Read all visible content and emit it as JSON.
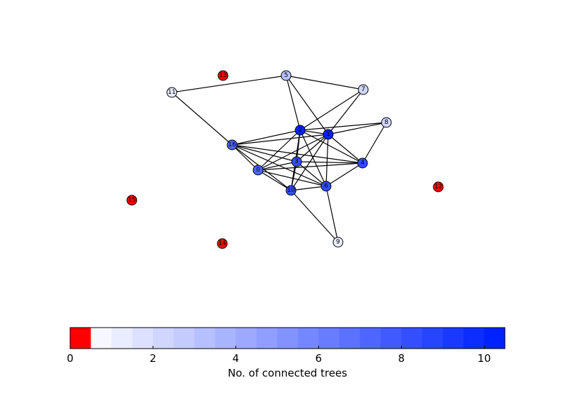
{
  "graph": {
    "nodes": [
      {
        "id": "0",
        "value": 7
      },
      {
        "id": "1",
        "value": 10
      },
      {
        "id": "2",
        "value": 10
      },
      {
        "id": "3",
        "value": 8
      },
      {
        "id": "4",
        "value": 8
      },
      {
        "id": "5",
        "value": 3
      },
      {
        "id": "6",
        "value": 8
      },
      {
        "id": "7",
        "value": 2
      },
      {
        "id": "8",
        "value": 2
      },
      {
        "id": "9",
        "value": 1
      },
      {
        "id": "10",
        "value": 8
      },
      {
        "id": "11",
        "value": 1
      },
      {
        "id": "12",
        "value": 0
      },
      {
        "id": "13",
        "value": 0
      },
      {
        "id": "14",
        "value": 0
      },
      {
        "id": "15",
        "value": 0
      },
      {
        "id": "16",
        "value": 7
      }
    ],
    "edges": [
      [
        "11",
        "5"
      ],
      [
        "11",
        "16"
      ],
      [
        "5",
        "7"
      ],
      [
        "5",
        "2"
      ],
      [
        "5",
        "1"
      ],
      [
        "7",
        "2"
      ],
      [
        "7",
        "1"
      ],
      [
        "2",
        "8"
      ],
      [
        "1",
        "8"
      ],
      [
        "8",
        "4"
      ],
      [
        "2",
        "1"
      ],
      [
        "2",
        "16"
      ],
      [
        "2",
        "0"
      ],
      [
        "2",
        "3"
      ],
      [
        "2",
        "10"
      ],
      [
        "2",
        "6"
      ],
      [
        "2",
        "4"
      ],
      [
        "1",
        "16"
      ],
      [
        "1",
        "0"
      ],
      [
        "1",
        "3"
      ],
      [
        "1",
        "10"
      ],
      [
        "1",
        "6"
      ],
      [
        "1",
        "4"
      ],
      [
        "16",
        "3"
      ],
      [
        "16",
        "0"
      ],
      [
        "16",
        "10"
      ],
      [
        "16",
        "6"
      ],
      [
        "16",
        "4"
      ],
      [
        "0",
        "3"
      ],
      [
        "0",
        "10"
      ],
      [
        "0",
        "6"
      ],
      [
        "0",
        "4"
      ],
      [
        "3",
        "10"
      ],
      [
        "3",
        "6"
      ],
      [
        "3",
        "4"
      ],
      [
        "10",
        "6"
      ],
      [
        "10",
        "9"
      ],
      [
        "6",
        "4"
      ],
      [
        "6",
        "9"
      ]
    ]
  },
  "colorbar": {
    "label": "No. of connected trees",
    "ticks": [
      "0",
      "2",
      "4",
      "6",
      "8",
      "10"
    ],
    "min": 0,
    "max": 10.5,
    "zero_color": "#ff0000",
    "low_color": "#f7f8ff",
    "high_color": "#0022ff"
  }
}
